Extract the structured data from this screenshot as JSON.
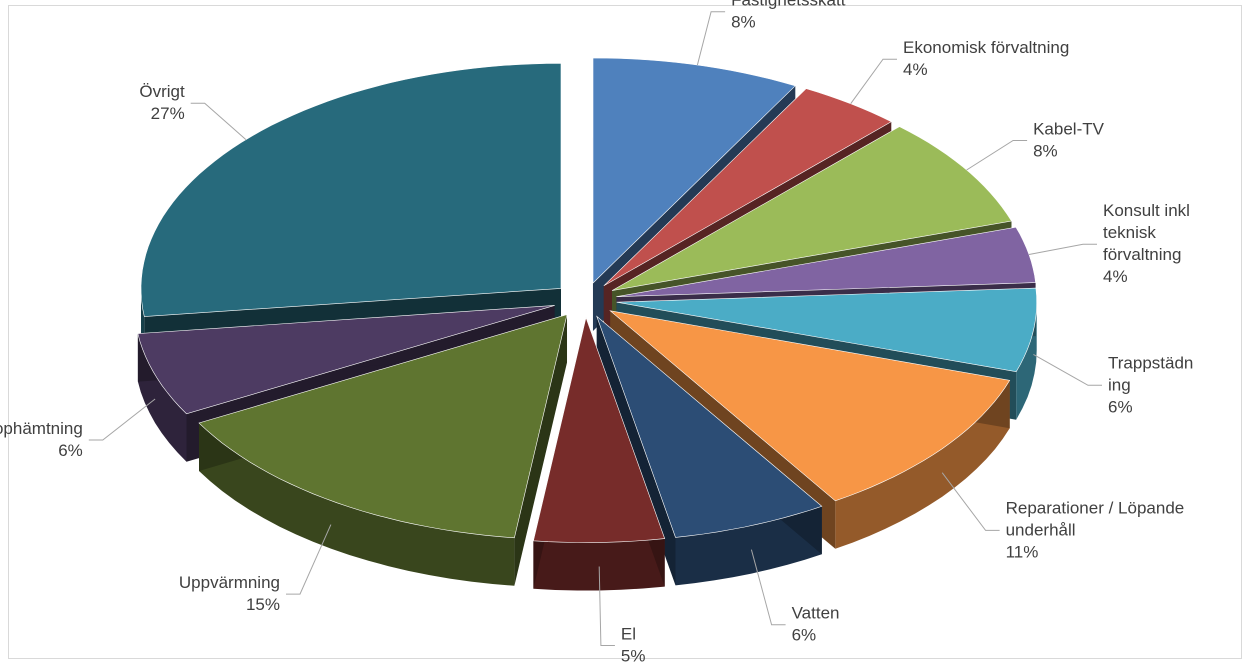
{
  "chart_data": {
    "type": "pie",
    "title": "",
    "style": "3d-exploded",
    "legend": "none",
    "slices": [
      {
        "label": "Fastighetsskatt",
        "percent": 8,
        "color": "#4f81bd",
        "label_lines": [
          "Fastighetsskatt"
        ],
        "value_text": "8%"
      },
      {
        "label": "Ekonomisk förvaltning",
        "percent": 4,
        "color": "#c0504d",
        "label_lines": [
          "Ekonomisk förvaltning"
        ],
        "value_text": "4%"
      },
      {
        "label": "Kabel-TV",
        "percent": 8,
        "color": "#9bbb59",
        "label_lines": [
          "Kabel-TV"
        ],
        "value_text": "8%"
      },
      {
        "label": "Konsult inkl teknisk förvaltning",
        "percent": 4,
        "color": "#8064a2",
        "label_lines": [
          "Konsult inkl",
          "teknisk",
          "förvaltning"
        ],
        "value_text": "4%"
      },
      {
        "label": "Trappstädning",
        "percent": 6,
        "color": "#4bacc6",
        "label_lines": [
          "Trappstädn",
          "ing"
        ],
        "value_text": "6%"
      },
      {
        "label": "Reparationer / Löpande underhåll",
        "percent": 11,
        "color": "#f79646",
        "label_lines": [
          "Reparationer / Löpande",
          "underhåll"
        ],
        "value_text": "11%"
      },
      {
        "label": "Vatten",
        "percent": 6,
        "color": "#2c4d75",
        "label_lines": [
          "Vatten"
        ],
        "value_text": "6%"
      },
      {
        "label": "El",
        "percent": 5,
        "color": "#772c2a",
        "label_lines": [
          "El"
        ],
        "value_text": "5%"
      },
      {
        "label": "Uppvärmning",
        "percent": 15,
        "color": "#5f7530",
        "label_lines": [
          "Uppvärmning"
        ],
        "value_text": "15%"
      },
      {
        "label": "Sophämtning",
        "percent": 6,
        "color": "#4d3b62",
        "label_lines": [
          "Sophämtning"
        ],
        "value_text": "6%"
      },
      {
        "label": "Övrigt",
        "percent": 27,
        "color": "#276a7c",
        "label_lines": [
          "Övrigt"
        ],
        "value_text": "27%"
      }
    ]
  }
}
